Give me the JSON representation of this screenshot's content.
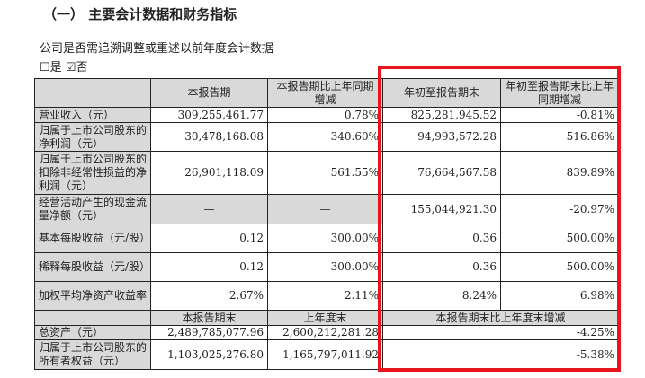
{
  "title": "（一） 主要会计数据和财务指标",
  "question": "公司是否需追溯调整或重述以前年度会计数据",
  "options": [
    {
      "label": "是",
      "checked": false,
      "box": "☐"
    },
    {
      "label": "否",
      "checked": true,
      "box": "☑"
    }
  ],
  "header": [
    "",
    "本报告期",
    "本报告期比上年同期增减",
    "年初至报告期末",
    "年初至报告期末比上年同期增减"
  ],
  "rows": [
    {
      "label": "营业收入（元）",
      "cells": [
        "309,255,461.77",
        "0.78%",
        "825,281,945.52",
        "-0.81%"
      ]
    },
    {
      "label": "归属于上市公司股东的净利润（元）",
      "cells": [
        "30,478,168.08",
        "340.60%",
        "94,993,572.28",
        "516.86%"
      ]
    },
    {
      "label": "归属于上市公司股东的扣除非经常性损益的净利润（元）",
      "cells": [
        "26,901,118.09",
        "561.55%",
        "76,664,567.58",
        "839.89%"
      ]
    },
    {
      "label": "经营活动产生的现金流量净额（元）",
      "cells": [
        "—",
        "—",
        "155,044,921.30",
        "-20.97%"
      ]
    },
    {
      "label": "基本每股收益（元/股）",
      "cells": [
        "0.12",
        "300.00%",
        "0.36",
        "500.00%"
      ]
    },
    {
      "label": "稀释每股收益（元/股）",
      "cells": [
        "0.12",
        "300.00%",
        "0.36",
        "500.00%"
      ]
    },
    {
      "label": "加权平均净资产收益率",
      "cells": [
        "2.67%",
        "2.11%",
        "8.24%",
        "6.98%"
      ]
    }
  ],
  "header2": [
    "",
    "本报告期末",
    "上年度末",
    "本报告期末比上年度末增减"
  ],
  "rows2": [
    {
      "label": "总资产（元）",
      "cells": [
        "2,489,785,077.96",
        "2,600,212,281.28",
        "-4.25%"
      ]
    },
    {
      "label": "归属于上市公司股东的所有者权益（元）",
      "cells": [
        "1,103,025,276.80",
        "1,165,797,011.92",
        "-5.38%"
      ]
    }
  ],
  "highlight_color": "#e8161c"
}
